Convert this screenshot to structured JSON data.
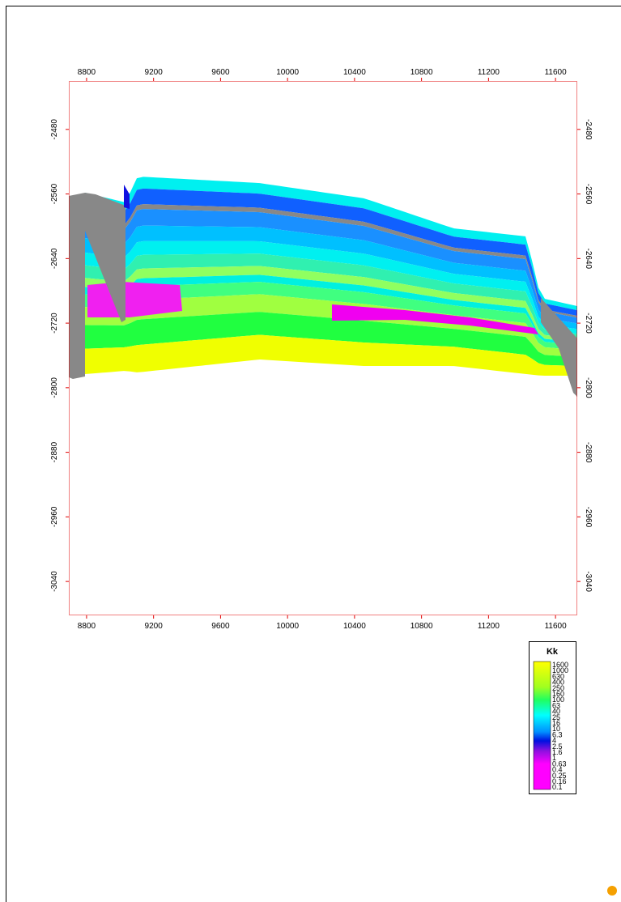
{
  "x_axis": {
    "ticks": [
      8800,
      9200,
      9600,
      10000,
      10400,
      10800,
      11200,
      11600
    ],
    "lim": [
      8694,
      11730
    ]
  },
  "y_axis": {
    "ticks": [
      -2480,
      -2560,
      -2640,
      -2720,
      -2800,
      -2880,
      -2960,
      -3040
    ],
    "lim": [
      -2420,
      -3082
    ]
  },
  "legend": {
    "title": "Kk",
    "labels": [
      "1600",
      "1000",
      "630",
      "400",
      "250",
      "160",
      "100",
      "63",
      "40",
      "25",
      "16",
      "10",
      "6.3",
      "4",
      "2.5",
      "1.6",
      "1",
      "0.63",
      "0.4",
      "0.25",
      "0.16",
      "0.1"
    ]
  }
}
